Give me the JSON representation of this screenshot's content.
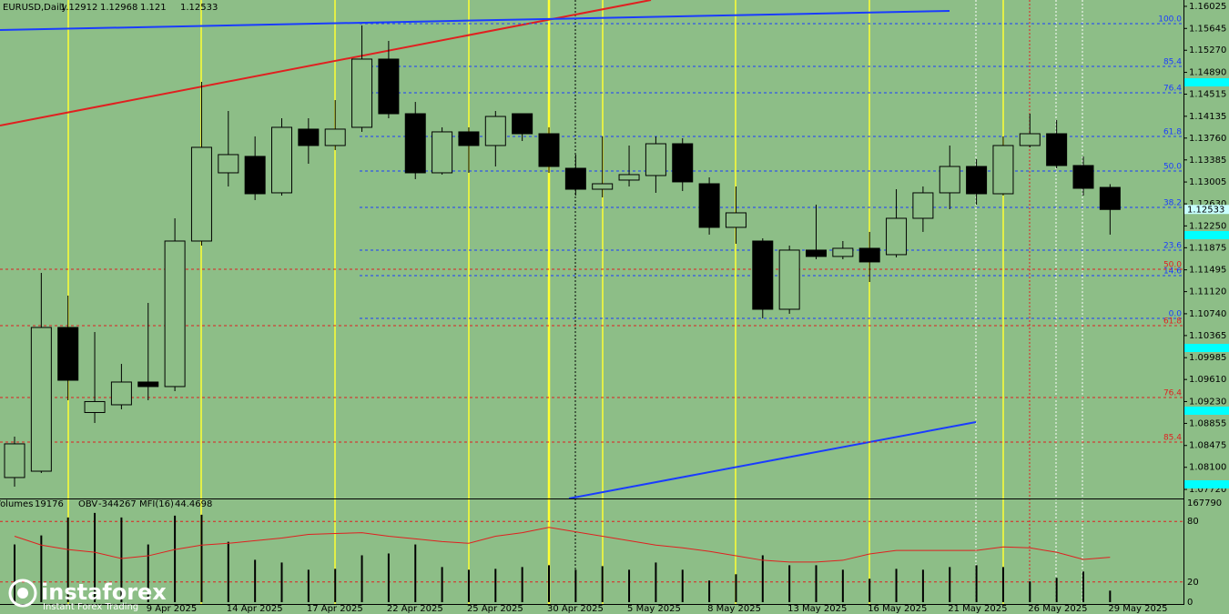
{
  "chart_data": {
    "type": "candlestick",
    "title": "EURUSD,Daily",
    "categories": [
      null,
      null,
      null,
      null,
      null,
      "9 Apr 2025",
      null,
      null,
      "14 Apr 2025",
      null,
      null,
      "17 Apr 2025",
      null,
      null,
      "22 Apr 2025",
      null,
      null,
      "25 Apr 2025",
      null,
      null,
      "30 Apr 2025",
      null,
      null,
      "5 May 2025",
      null,
      null,
      "8 May 2025",
      null,
      null,
      "13 May 2025",
      null,
      null,
      "16 May 2025",
      null,
      null,
      "21 May 2025",
      null,
      null,
      "26 May 2025",
      null,
      null,
      "29 May 2025"
    ],
    "open": [
      1.07924,
      1.08033,
      1.10504,
      1.09042,
      1.09175,
      1.09566,
      1.09488,
      1.1199,
      1.13163,
      1.13445,
      1.12819,
      1.13914,
      1.13632,
      1.13945,
      1.15118,
      1.14179,
      1.13163,
      1.13867,
      1.13632,
      1.14179,
      1.13835,
      1.13241,
      1.12881,
      1.13038,
      1.13116,
      1.13663,
      1.12975,
      1.12225,
      1.1199,
      1.10817,
      1.11834,
      1.11725,
      1.11865,
      1.11756,
      1.12381,
      1.12819,
      1.13272,
      1.12803,
      1.13632,
      1.13835,
      1.13288,
      1.12912
    ],
    "high": [
      1.08628,
      1.11443,
      1.11052,
      1.10426,
      1.09878,
      1.10926,
      1.12381,
      1.14727,
      1.14226,
      1.13789,
      1.14101,
      1.14101,
      1.14414,
      1.15697,
      1.15431,
      1.14382,
      1.13945,
      1.13945,
      1.14226,
      1.14179,
      1.13945,
      1.13476,
      1.13789,
      1.13632,
      1.13789,
      1.13757,
      1.13085,
      1.12928,
      1.12037,
      1.11912,
      1.12615,
      1.1199,
      1.12147,
      1.12881,
      1.12928,
      1.13632,
      1.13397,
      1.13789,
      1.14179,
      1.1407,
      1.13445,
      1.12968
    ],
    "low": [
      1.07767,
      1.08002,
      1.09253,
      1.08862,
      1.09097,
      1.09253,
      1.0941,
      1.11912,
      1.12928,
      1.12694,
      1.12772,
      1.13319,
      1.13554,
      1.13867,
      1.14101,
      1.13054,
      1.13132,
      1.13163,
      1.13272,
      1.1371,
      1.13163,
      1.12772,
      1.12741,
      1.12928,
      1.12819,
      1.1285,
      1.121,
      1.11943,
      1.10661,
      1.10739,
      1.11677,
      1.11677,
      1.11286,
      1.11709,
      1.12147,
      1.12537,
      1.12615,
      1.12772,
      1.13601,
      1.13241,
      1.12772,
      1.121
    ],
    "close": [
      1.08503,
      1.10504,
      1.09597,
      1.0923,
      1.09566,
      1.09488,
      1.1199,
      1.13601,
      1.13476,
      1.12803,
      1.13945,
      1.13632,
      1.13914,
      1.15118,
      1.14179,
      1.13163,
      1.13867,
      1.13632,
      1.14132,
      1.13835,
      1.13272,
      1.12881,
      1.12975,
      1.13132,
      1.13663,
      1.13007,
      1.12225,
      1.12475,
      1.10817,
      1.11834,
      1.11725,
      1.11865,
      1.11631,
      1.12381,
      1.12819,
      1.13272,
      1.12803,
      1.13632,
      1.13835,
      1.13288,
      1.12897,
      1.12533
    ],
    "ylim": [
      1.07564,
      1.16134
    ],
    "yticks": [
      1.16025,
      1.15645,
      {
        "value": 1.1527,
        "label": "1.15270"
      },
      {
        "value": 1.1489,
        "label": "1.14890"
      },
      1.14515,
      1.14135,
      {
        "value": 1.1376,
        "label": "1.13760"
      },
      1.13385,
      1.13005,
      {
        "value": 1.1263,
        "label": "1.12630"
      },
      {
        "value": 1.1225,
        "label": "1.12250"
      },
      1.11875,
      1.11495,
      {
        "value": 1.1112,
        "label": "1.11120"
      },
      {
        "value": 1.1074,
        "label": "1.10740"
      },
      1.10365,
      1.09985,
      {
        "value": 1.0961,
        "label": "1.09610"
      },
      {
        "value": 1.0923,
        "label": "1.09230"
      },
      1.08855,
      1.08475,
      {
        "value": 1.081,
        "label": "1.08100"
      },
      {
        "value": 1.0772,
        "label": "1.07720"
      }
    ],
    "fib_levels": [
      {
        "label": "100.0",
        "value": 1.15728,
        "color": "#1a3cff"
      },
      {
        "label": "85.4",
        "value": 1.14993,
        "color": "#1a3cff"
      },
      {
        "label": "76.4",
        "value": 1.14539,
        "color": "#1a3cff"
      },
      {
        "label": "61.8",
        "value": 1.13789,
        "color": "#1a3cff"
      },
      {
        "label": "50.0",
        "value": 1.13194,
        "color": "#1a3cff"
      },
      {
        "label": "38.2",
        "value": 1.12569,
        "color": "#1a3cff"
      },
      {
        "label": "23.6",
        "value": 1.11834,
        "color": "#1a3cff"
      },
      {
        "label": "14.6",
        "value": 1.11396,
        "color": "#1a3cff"
      },
      {
        "label": "0.0",
        "value": 1.1066,
        "color": "#1a3cff"
      },
      {
        "label": "50.0",
        "value": 1.11505,
        "color": "#e02020"
      },
      {
        "label": "61.8",
        "value": 1.10535,
        "color": "#e02020"
      },
      {
        "label": "76.4",
        "value": 1.093,
        "color": "#e02020"
      },
      {
        "label": "85.4",
        "value": 1.08534,
        "color": "#e02020"
      }
    ],
    "indicator": {
      "volume_label": "Volumes",
      "volumes": [
        95900,
        110850,
        140800,
        148300,
        140800,
        95900,
        143800,
        145300,
        100400,
        70400,
        65900,
        53900,
        55400,
        77900,
        80900,
        95900,
        58400,
        53900,
        55400,
        58400,
        61400,
        53900,
        59900,
        53900,
        65900,
        53900,
        36000,
        46400,
        77900,
        61400,
        61400,
        53900,
        38900,
        55400,
        53900,
        58400,
        61400,
        58400,
        34500,
        40400,
        50900,
        19176
      ],
      "volume_ylim": [
        0,
        167790
      ],
      "obv_label": "OBV",
      "obv": -344267,
      "mfi_label": "MFI(16)",
      "mfi": [
        65.3,
        56.5,
        52.1,
        49.4,
        43.2,
        45.9,
        52.1,
        56.5,
        58.3,
        60.9,
        63.5,
        67.1,
        68.0,
        68.8,
        65.3,
        62.7,
        60.0,
        58.3,
        65.3,
        68.8,
        74.1,
        69.7,
        65.3,
        60.9,
        56.5,
        53.8,
        50.3,
        45.9,
        41.5,
        39.7,
        39.7,
        41.5,
        47.7,
        51.2,
        51.2,
        51.2,
        51.2,
        54.7,
        53.8,
        49.4,
        42.4,
        44.4698
      ],
      "mfi_color": "#e02020",
      "mfi_ylim": [
        0,
        100
      ],
      "mfi_yticks": [
        0,
        20,
        80
      ]
    }
  },
  "logo": {
    "name": "instaforex",
    "tagline": "Instant Forex Trading"
  }
}
